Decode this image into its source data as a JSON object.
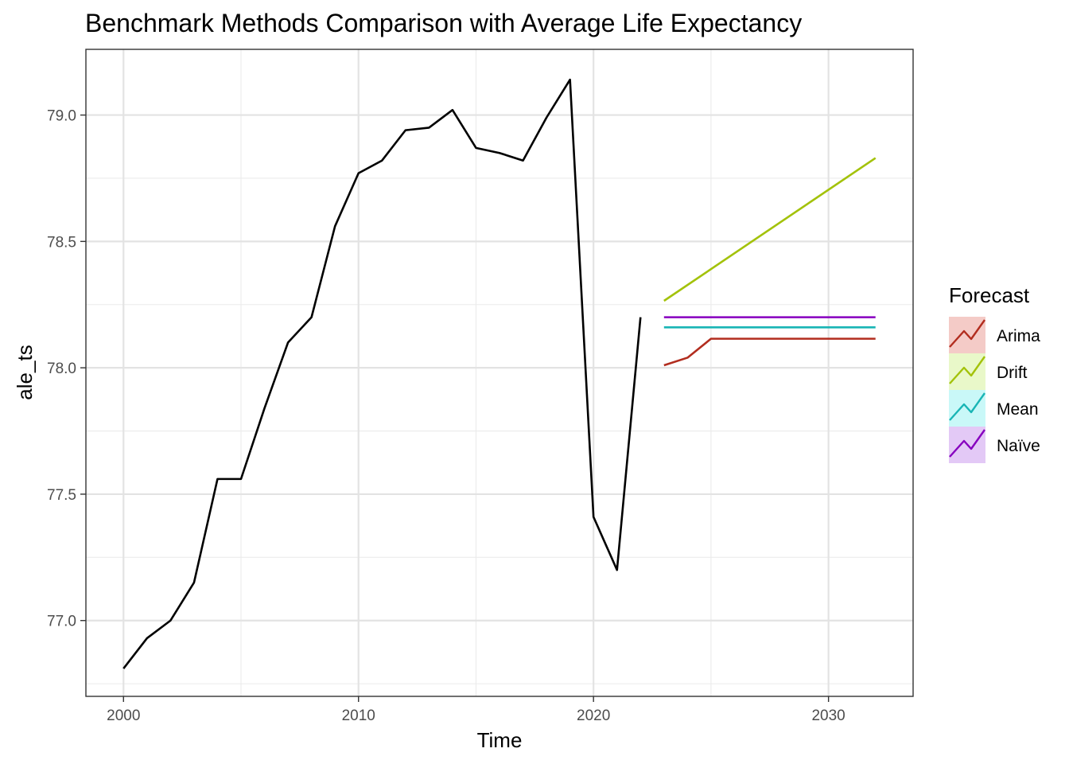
{
  "chart_data": {
    "type": "line",
    "title": "Benchmark Methods Comparison with Average Life Expectancy",
    "xlabel": "Time",
    "ylabel": "ale_ts",
    "xlim": [
      1998.4,
      2033.6
    ],
    "ylim": [
      76.7,
      79.26
    ],
    "x_ticks": [
      2000,
      2010,
      2020,
      2030
    ],
    "x_tick_labels": [
      "2000",
      "2010",
      "2020",
      "2030"
    ],
    "x_minor_ticks": [
      2005,
      2015,
      2025
    ],
    "y_ticks": [
      77.0,
      77.5,
      78.0,
      78.5,
      79.0
    ],
    "y_tick_labels": [
      "77.0",
      "77.5",
      "78.0",
      "78.5",
      "79.0"
    ],
    "y_minor_ticks": [
      76.75,
      77.25,
      77.75,
      78.25,
      78.75
    ],
    "grid": true,
    "history": {
      "color": "#000000",
      "x": [
        2000,
        2001,
        2002,
        2003,
        2004,
        2005,
        2006,
        2007,
        2008,
        2009,
        2010,
        2011,
        2012,
        2013,
        2014,
        2015,
        2016,
        2017,
        2018,
        2019,
        2020,
        2021,
        2022
      ],
      "y": [
        76.81,
        76.93,
        77.0,
        77.15,
        77.56,
        77.56,
        77.84,
        78.1,
        78.2,
        78.56,
        78.77,
        78.82,
        78.94,
        78.95,
        79.02,
        78.87,
        78.85,
        78.82,
        78.99,
        79.14,
        77.41,
        77.2,
        78.2
      ]
    },
    "legend": {
      "title": "Forecast",
      "position": "right"
    },
    "series": [
      {
        "name": "Arima",
        "color": "#b22d1f",
        "fill": "#f4cbc7",
        "x": [
          2023,
          2024,
          2025,
          2026,
          2027,
          2028,
          2029,
          2030,
          2031,
          2032
        ],
        "y": [
          78.01,
          78.04,
          78.115,
          78.115,
          78.115,
          78.115,
          78.115,
          78.115,
          78.115,
          78.115
        ]
      },
      {
        "name": "Drift",
        "color": "#a3c20a",
        "fill": "#e9f8c9",
        "x": [
          2023,
          2032
        ],
        "y": [
          78.265,
          78.83
        ]
      },
      {
        "name": "Mean",
        "color": "#19b5b5",
        "fill": "#c9f8f8",
        "x": [
          2023,
          2032
        ],
        "y": [
          78.16,
          78.16
        ]
      },
      {
        "name": "Naïve",
        "color": "#8700bf",
        "fill": "#e3c9f6",
        "x": [
          2023,
          2032
        ],
        "y": [
          78.2,
          78.2
        ]
      }
    ]
  }
}
